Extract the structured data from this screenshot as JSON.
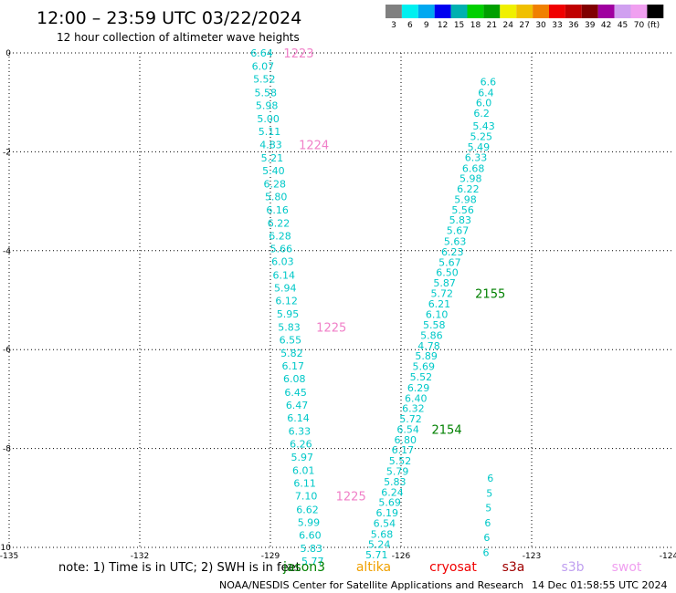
{
  "header": {
    "title": "12:00 – 23:59 UTC 03/22/2024",
    "subtitle": "12 hour collection of altimeter wave heights"
  },
  "colorbar": {
    "colors": [
      "#808080",
      "#00f0f0",
      "#00a8f0",
      "#0000f0",
      "#00b0b0",
      "#00d000",
      "#00a000",
      "#f0f000",
      "#f0c000",
      "#f08000",
      "#f00000",
      "#c00000",
      "#800000",
      "#a000a0",
      "#d0a0f0",
      "#f0a0f0",
      "#000000"
    ],
    "labels": [
      "3",
      "6",
      "9",
      "12",
      "15",
      "18",
      "21",
      "24",
      "27",
      "30",
      "33",
      "36",
      "39",
      "42",
      "45",
      "70",
      "(ft)"
    ]
  },
  "chart_data": {
    "type": "scatter",
    "xlim": [
      -135,
      -124
    ],
    "ylim": [
      -10,
      0
    ],
    "xticks": [
      "-135",
      "-132",
      "-129",
      "-126",
      "-123",
      "-124"
    ],
    "yticks": [
      "0",
      "-2",
      "-4",
      "-6",
      "-8",
      "-10"
    ],
    "grid": true,
    "series": [
      {
        "color": "#00c8c8",
        "points": [
          {
            "x": -129.2,
            "y": 0.0,
            "v": "6.64"
          },
          {
            "x": -129.17,
            "y": -0.27,
            "v": "6.07"
          },
          {
            "x": -129.14,
            "y": -0.53,
            "v": "5.52"
          },
          {
            "x": -129.11,
            "y": -0.8,
            "v": "5.58"
          },
          {
            "x": -129.08,
            "y": -1.06,
            "v": "5.98"
          },
          {
            "x": -129.05,
            "y": -1.33,
            "v": "5.00"
          },
          {
            "x": -129.02,
            "y": -1.59,
            "v": "5.11"
          },
          {
            "x": -128.99,
            "y": -1.85,
            "v": "4.83"
          },
          {
            "x": -128.96,
            "y": -2.12,
            "v": "5.21"
          },
          {
            "x": -128.93,
            "y": -2.38,
            "v": "5.40"
          },
          {
            "x": -128.9,
            "y": -2.65,
            "v": "6.28"
          },
          {
            "x": -128.87,
            "y": -2.91,
            "v": "5.80"
          },
          {
            "x": -128.84,
            "y": -3.17,
            "v": "6.16"
          },
          {
            "x": -128.81,
            "y": -3.44,
            "v": "6.22"
          },
          {
            "x": -128.78,
            "y": -3.7,
            "v": "6.28"
          },
          {
            "x": -128.75,
            "y": -3.96,
            "v": "5.66"
          },
          {
            "x": -128.72,
            "y": -4.22,
            "v": "6.03"
          },
          {
            "x": -128.69,
            "y": -4.49,
            "v": "6.14"
          },
          {
            "x": -128.66,
            "y": -4.75,
            "v": "5.94"
          },
          {
            "x": -128.63,
            "y": -5.01,
            "v": "6.12"
          },
          {
            "x": -128.6,
            "y": -5.28,
            "v": "5.95"
          },
          {
            "x": -128.57,
            "y": -5.54,
            "v": "5.83"
          },
          {
            "x": -128.54,
            "y": -5.8,
            "v": "6.55"
          },
          {
            "x": -128.51,
            "y": -6.07,
            "v": "5.82"
          },
          {
            "x": -128.48,
            "y": -6.33,
            "v": "6.17"
          },
          {
            "x": -128.45,
            "y": -6.59,
            "v": "6.08"
          },
          {
            "x": -128.42,
            "y": -6.86,
            "v": "6.45"
          },
          {
            "x": -128.39,
            "y": -7.12,
            "v": "6.47"
          },
          {
            "x": -128.36,
            "y": -7.38,
            "v": "6.14"
          },
          {
            "x": -128.33,
            "y": -7.65,
            "v": "6.33"
          },
          {
            "x": -128.3,
            "y": -7.91,
            "v": "6.26"
          },
          {
            "x": -128.27,
            "y": -8.17,
            "v": "5.97"
          },
          {
            "x": -128.24,
            "y": -8.44,
            "v": "6.01"
          },
          {
            "x": -128.21,
            "y": -8.7,
            "v": "6.11"
          },
          {
            "x": -128.18,
            "y": -8.96,
            "v": "7.10"
          },
          {
            "x": -128.15,
            "y": -9.23,
            "v": "6.62"
          },
          {
            "x": -128.12,
            "y": -9.49,
            "v": "5.99"
          },
          {
            "x": -128.09,
            "y": -9.75,
            "v": "6.60"
          },
          {
            "x": -128.06,
            "y": -10.02,
            "v": "5.83"
          },
          {
            "x": -128.03,
            "y": -10.28,
            "v": "5.77"
          }
        ],
        "time_labels": [
          {
            "x": -128.35,
            "y": 0.0,
            "t": "1223"
          },
          {
            "x": -128.0,
            "y": -1.85,
            "t": "1224"
          },
          {
            "x": -127.6,
            "y": -5.54,
            "t": "1225"
          },
          {
            "x": -127.15,
            "y": -8.96,
            "t": "1225"
          }
        ],
        "time_color": "#f080c8"
      },
      {
        "color": "#00c8c8",
        "points": [
          {
            "x": -124.0,
            "y": -0.58,
            "v": "6.6"
          },
          {
            "x": -124.05,
            "y": -0.8,
            "v": "6.4"
          },
          {
            "x": -124.1,
            "y": -1.01,
            "v": "6.0"
          },
          {
            "x": -124.15,
            "y": -1.22,
            "v": "6.2"
          },
          {
            "x": -124.1,
            "y": -1.48,
            "v": "5.43"
          },
          {
            "x": -124.16,
            "y": -1.69,
            "v": "5.25"
          },
          {
            "x": -124.22,
            "y": -1.9,
            "v": "5.49"
          },
          {
            "x": -124.28,
            "y": -2.11,
            "v": "6.33"
          },
          {
            "x": -124.34,
            "y": -2.33,
            "v": "6.68"
          },
          {
            "x": -124.4,
            "y": -2.54,
            "v": "5.98"
          },
          {
            "x": -124.46,
            "y": -2.75,
            "v": "6.22"
          },
          {
            "x": -124.52,
            "y": -2.96,
            "v": "5.98"
          },
          {
            "x": -124.58,
            "y": -3.17,
            "v": "5.56"
          },
          {
            "x": -124.64,
            "y": -3.38,
            "v": "5.83"
          },
          {
            "x": -124.7,
            "y": -3.59,
            "v": "5.67"
          },
          {
            "x": -124.76,
            "y": -3.81,
            "v": "5.63"
          },
          {
            "x": -124.82,
            "y": -4.02,
            "v": "6.23"
          },
          {
            "x": -124.88,
            "y": -4.23,
            "v": "5.67"
          },
          {
            "x": -124.94,
            "y": -4.44,
            "v": "6.50"
          },
          {
            "x": -125.0,
            "y": -4.65,
            "v": "5.87"
          },
          {
            "x": -125.06,
            "y": -4.86,
            "v": "5.72"
          },
          {
            "x": -125.12,
            "y": -5.07,
            "v": "6.21"
          },
          {
            "x": -125.18,
            "y": -5.29,
            "v": "6.10"
          },
          {
            "x": -125.24,
            "y": -5.5,
            "v": "5.58"
          },
          {
            "x": -125.3,
            "y": -5.71,
            "v": "5.86"
          },
          {
            "x": -125.36,
            "y": -5.92,
            "v": "4.78"
          },
          {
            "x": -125.42,
            "y": -6.13,
            "v": "5.89"
          },
          {
            "x": -125.48,
            "y": -6.34,
            "v": "5.69"
          },
          {
            "x": -125.54,
            "y": -6.55,
            "v": "5.52"
          },
          {
            "x": -125.6,
            "y": -6.77,
            "v": "6.29"
          },
          {
            "x": -125.66,
            "y": -6.98,
            "v": "6.40"
          },
          {
            "x": -125.72,
            "y": -7.19,
            "v": "6.32"
          },
          {
            "x": -125.78,
            "y": -7.4,
            "v": "5.72"
          },
          {
            "x": -125.84,
            "y": -7.61,
            "v": "6.54"
          },
          {
            "x": -125.9,
            "y": -7.82,
            "v": "6.80"
          },
          {
            "x": -125.96,
            "y": -8.03,
            "v": "6.17"
          },
          {
            "x": -126.02,
            "y": -8.25,
            "v": "5.52"
          },
          {
            "x": -126.08,
            "y": -8.46,
            "v": "5.79"
          },
          {
            "x": -126.14,
            "y": -8.67,
            "v": "5.83"
          },
          {
            "x": -126.2,
            "y": -8.88,
            "v": "6.24"
          },
          {
            "x": -126.26,
            "y": -9.09,
            "v": "5.69"
          },
          {
            "x": -126.32,
            "y": -9.3,
            "v": "6.19"
          },
          {
            "x": -126.38,
            "y": -9.51,
            "v": "6.54"
          },
          {
            "x": -126.44,
            "y": -9.73,
            "v": "5.68"
          },
          {
            "x": -126.5,
            "y": -9.94,
            "v": "5.24"
          },
          {
            "x": -126.56,
            "y": -10.15,
            "v": "5.71"
          }
        ],
        "time_labels": [
          {
            "x": -123.95,
            "y": -4.86,
            "t": "2155"
          },
          {
            "x": -124.95,
            "y": -7.61,
            "t": "2154"
          }
        ],
        "time_color": "#008000"
      },
      {
        "color": "#00c8c8",
        "points": [
          {
            "x": -123.95,
            "y": -8.6,
            "v": "6"
          },
          {
            "x": -123.97,
            "y": -8.9,
            "v": "5"
          },
          {
            "x": -123.99,
            "y": -9.2,
            "v": "5"
          },
          {
            "x": -124.01,
            "y": -9.5,
            "v": "6"
          },
          {
            "x": -124.03,
            "y": -9.8,
            "v": "6"
          },
          {
            "x": -124.05,
            "y": -10.1,
            "v": "6"
          }
        ],
        "time_labels": [],
        "time_color": "#008000"
      }
    ]
  },
  "footer": {
    "note": "note:  1) Time is in UTC; 2) SWH is in feet",
    "satellites": [
      {
        "name": "jason3",
        "color": "#008000"
      },
      {
        "name": "altika",
        "color": "#f0a000"
      },
      {
        "name": "cryosat",
        "color": "#f00000"
      },
      {
        "name": "s3a",
        "color": "#a00000"
      },
      {
        "name": "s3b",
        "color": "#c0a0f0"
      },
      {
        "name": "swot",
        "color": "#f0a0f0"
      }
    ],
    "credit": "NOAA/NESDIS Center for Satellite Applications and Research",
    "timestamp": "14 Dec 01:58:55 UTC 2024"
  }
}
